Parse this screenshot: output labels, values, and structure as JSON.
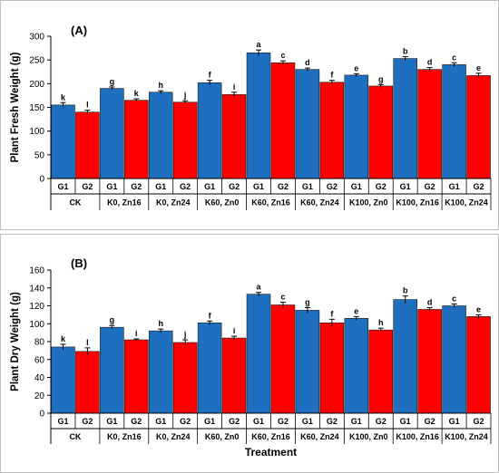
{
  "chart_data": [
    {
      "type": "bar",
      "panel_label": "(A)",
      "ylabel": "Plant Fresh Weight (g)",
      "xlabel": "",
      "ylim": [
        0,
        300
      ],
      "yticks": [
        0,
        50,
        100,
        150,
        200,
        250,
        300
      ],
      "categories": [
        "CK",
        "K0, Zn16",
        "K0, Zn24",
        "K60, Zn0",
        "K60, Zn16",
        "K60, Zn24",
        "K100, Zn0",
        "K100, Zn16",
        "K100, Zn24"
      ],
      "groups": [
        "G1",
        "G2"
      ],
      "colors": [
        "#1F6FC0",
        "#FF0000"
      ],
      "series": [
        {
          "values": [
            155,
            190,
            182,
            202,
            265,
            230,
            218,
            253,
            240
          ],
          "errors": [
            5,
            3,
            3,
            5,
            6,
            3,
            3,
            4,
            4
          ],
          "letters": [
            "k",
            "g",
            "h",
            "f",
            "a",
            "d",
            "e",
            "b",
            "c"
          ]
        },
        {
          "values": [
            140,
            165,
            161,
            177,
            244,
            203,
            195,
            230,
            217
          ],
          "errors": [
            4,
            3,
            3,
            5,
            4,
            4,
            3,
            4,
            5
          ],
          "letters": [
            "l",
            "k",
            "j",
            "i",
            "c",
            "f",
            "g",
            "d",
            "e"
          ]
        }
      ]
    },
    {
      "type": "bar",
      "panel_label": "(B)",
      "ylabel": "Plant Dry Weight (g)",
      "xlabel": "Treatment",
      "ylim": [
        0,
        160
      ],
      "yticks": [
        0,
        20,
        40,
        60,
        80,
        100,
        120,
        140,
        160
      ],
      "categories": [
        "CK",
        "K0, Zn16",
        "K0, Zn24",
        "K60, Zn0",
        "K60, Zn16",
        "K60, Zn24",
        "K100, Zn0",
        "K100, Zn16",
        "K100, Zn24"
      ],
      "groups": [
        "G1",
        "G2"
      ],
      "colors": [
        "#1F6FC0",
        "#FF0000"
      ],
      "series": [
        {
          "values": [
            74,
            96,
            92,
            101,
            133,
            115,
            106,
            127,
            120
          ],
          "errors": [
            3,
            2,
            2,
            2,
            2,
            3,
            2,
            4,
            2
          ],
          "letters": [
            "k",
            "g",
            "h",
            "f",
            "a",
            "g",
            "e",
            "b",
            "c"
          ]
        },
        {
          "values": [
            69,
            82,
            79,
            84,
            121,
            101,
            93,
            116,
            108
          ],
          "errors": [
            4,
            1,
            3,
            2,
            3,
            4,
            2,
            2,
            2
          ],
          "letters": [
            "l",
            "i",
            "j",
            "i",
            "c",
            "f",
            "h",
            "d",
            "e"
          ]
        }
      ]
    }
  ]
}
